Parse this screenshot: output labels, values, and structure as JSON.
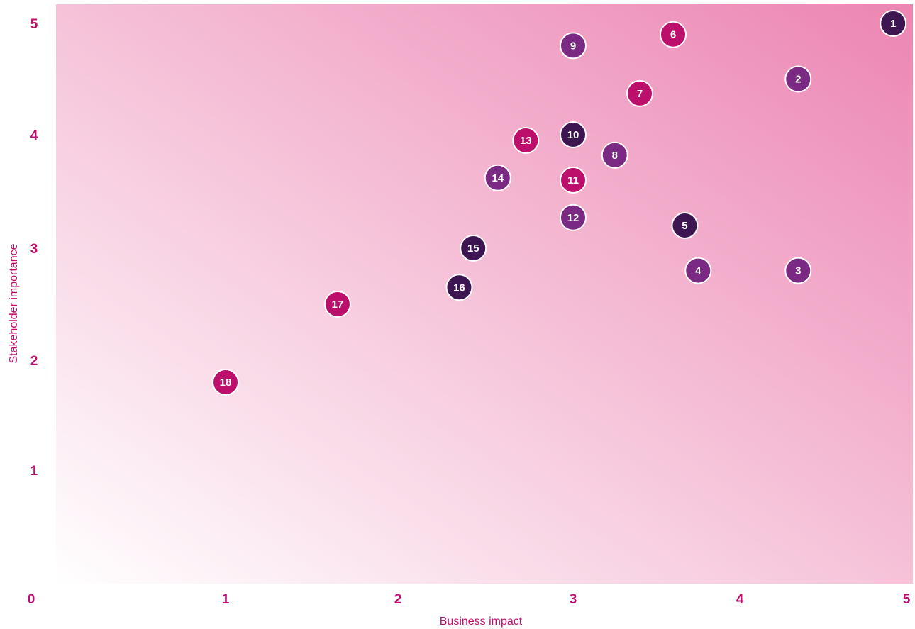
{
  "chart_data": {
    "type": "scatter",
    "title": "",
    "xlabel": "Business impact",
    "ylabel": "Stakeholder importance",
    "x_ticks": [
      {
        "value": 0,
        "label": "0"
      },
      {
        "value": 1,
        "label": "1"
      },
      {
        "value": 2,
        "label": "2"
      },
      {
        "value": 3,
        "label": "3"
      },
      {
        "value": 4,
        "label": "4"
      },
      {
        "value": 5,
        "label": "5"
      }
    ],
    "y_ticks": [
      {
        "value": 1,
        "label": "1"
      },
      {
        "value": 2,
        "label": "2"
      },
      {
        "value": 3,
        "label": "3"
      },
      {
        "value": 4,
        "label": "4"
      },
      {
        "value": 5,
        "label": "5"
      }
    ],
    "xlim": [
      0,
      5
    ],
    "ylim": [
      0,
      5
    ],
    "grid": false,
    "background": "gradient from white (bottom-left) to pink (top-right)",
    "points": [
      {
        "label": "1",
        "x": 4.92,
        "y": 5.0,
        "color": "#3d1550"
      },
      {
        "label": "2",
        "x": 4.35,
        "y": 4.5,
        "color": "#7a2a82"
      },
      {
        "label": "3",
        "x": 4.35,
        "y": 2.8,
        "color": "#7a2a82"
      },
      {
        "label": "4",
        "x": 3.75,
        "y": 2.8,
        "color": "#7a2a82"
      },
      {
        "label": "5",
        "x": 3.67,
        "y": 3.2,
        "color": "#3d1550"
      },
      {
        "label": "6",
        "x": 3.6,
        "y": 4.9,
        "color": "#bc0f6b"
      },
      {
        "label": "7",
        "x": 3.4,
        "y": 4.37,
        "color": "#bc0f6b"
      },
      {
        "label": "8",
        "x": 3.25,
        "y": 3.82,
        "color": "#7a2a82"
      },
      {
        "label": "9",
        "x": 3.0,
        "y": 4.8,
        "color": "#7a2a82"
      },
      {
        "label": "10",
        "x": 3.0,
        "y": 4.0,
        "color": "#3d1550"
      },
      {
        "label": "11",
        "x": 3.0,
        "y": 3.6,
        "color": "#bc0f6b"
      },
      {
        "label": "12",
        "x": 3.0,
        "y": 3.27,
        "color": "#7a2a82"
      },
      {
        "label": "13",
        "x": 2.73,
        "y": 3.95,
        "color": "#bc0f6b"
      },
      {
        "label": "14",
        "x": 2.57,
        "y": 3.62,
        "color": "#7a2a82"
      },
      {
        "label": "15",
        "x": 2.43,
        "y": 3.0,
        "color": "#3d1550"
      },
      {
        "label": "16",
        "x": 2.35,
        "y": 2.65,
        "color": "#3d1550"
      },
      {
        "label": "17",
        "x": 1.65,
        "y": 2.5,
        "color": "#bc0f6b"
      },
      {
        "label": "18",
        "x": 1.0,
        "y": 1.8,
        "color": "#bc0f6b"
      }
    ],
    "colors": {
      "accent": "#bc0f6b",
      "dark_purple": "#3d1550",
      "mid_purple": "#7a2a82",
      "gradient_start": "#ffffff",
      "gradient_end": "#ec85b2"
    }
  }
}
